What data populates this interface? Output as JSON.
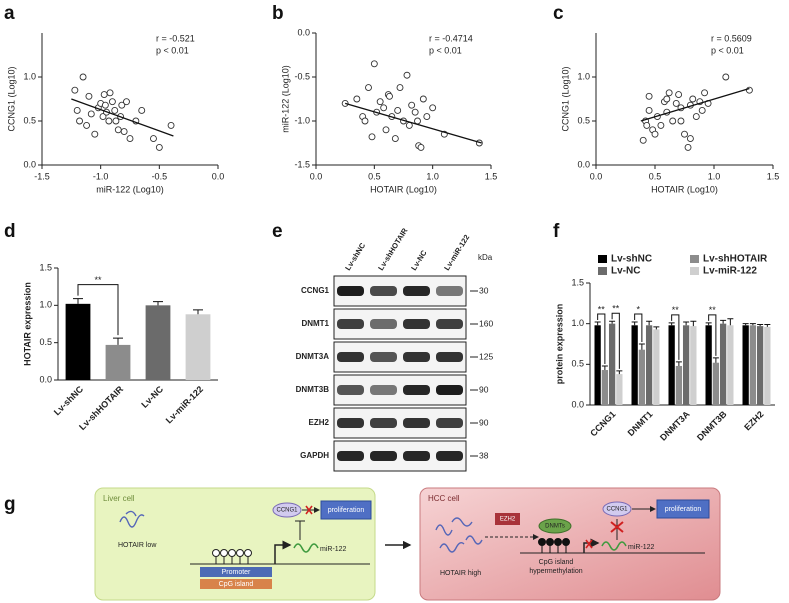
{
  "chart_data": [
    {
      "type": "scatter",
      "panel": "a",
      "x_label": "miR-122 (Log10)",
      "y_label": "CCNG1 (Log10)",
      "r_text": "r = -0.521",
      "p_text": "p < 0.01",
      "color": "#333333",
      "xlim": [
        -1.5,
        0
      ],
      "xticks": [
        -1.5,
        {
          "value": -1,
          "label": "-1.0"
        },
        -0.5,
        {
          "value": 0,
          "label": "0.0"
        }
      ],
      "ylim": [
        0,
        1.5
      ],
      "yticks": [
        {
          "value": 0,
          "label": "0.0"
        },
        0.5,
        {
          "value": 1,
          "label": "1.0"
        }
      ],
      "x": [
        -1.22,
        -1.2,
        -1.15,
        -1.12,
        -1.1,
        -1.05,
        -1.02,
        -1.0,
        -0.98,
        -0.97,
        -0.95,
        -0.93,
        -0.92,
        -0.9,
        -0.88,
        -0.87,
        -0.85,
        -0.83,
        -0.82,
        -0.8,
        -0.78,
        -0.75,
        -0.7,
        -0.65,
        -0.55,
        -0.5,
        -0.4,
        -1.18,
        -1.08,
        -0.96
      ],
      "y": [
        0.85,
        0.62,
        1.0,
        0.45,
        0.78,
        0.35,
        0.65,
        0.7,
        0.55,
        0.8,
        0.6,
        0.5,
        0.82,
        0.72,
        0.62,
        0.5,
        0.4,
        0.55,
        0.68,
        0.38,
        0.72,
        0.3,
        0.5,
        0.62,
        0.3,
        0.2,
        0.45,
        0.5,
        0.58,
        0.68
      ],
      "trendline": {
        "x": [
          -1.25,
          -0.38
        ],
        "y": [
          0.75,
          0.33
        ]
      }
    },
    {
      "type": "scatter",
      "panel": "b",
      "x_label": "HOTAIR (Log10)",
      "y_label": "miR-122 (Log10)",
      "r_text": "r = -0.4714",
      "p_text": "p < 0.01",
      "color": "#333333",
      "xlim": [
        0,
        1.5
      ],
      "xticks": [
        {
          "value": 0,
          "label": "0.0"
        },
        0.5,
        {
          "value": 1,
          "label": "1.0"
        },
        1.5
      ],
      "ylim": [
        -1.5,
        0
      ],
      "yticks": [
        -1.5,
        {
          "value": -1,
          "label": "-1.0"
        },
        -0.5,
        {
          "value": 0,
          "label": "0.0"
        }
      ],
      "x": [
        0.25,
        0.35,
        0.4,
        0.42,
        0.45,
        0.5,
        0.52,
        0.55,
        0.58,
        0.6,
        0.62,
        0.65,
        0.68,
        0.7,
        0.72,
        0.75,
        0.78,
        0.8,
        0.82,
        0.85,
        0.88,
        0.9,
        0.92,
        0.95,
        1.0,
        1.1,
        1.4,
        0.48,
        0.63,
        0.87
      ],
      "y": [
        -0.8,
        -0.75,
        -0.95,
        -1.0,
        -0.62,
        -0.35,
        -0.9,
        -0.78,
        -0.85,
        -1.1,
        -0.7,
        -0.95,
        -1.2,
        -0.88,
        -0.62,
        -1.0,
        -0.48,
        -1.05,
        -0.82,
        -0.9,
        -1.28,
        -1.3,
        -0.75,
        -0.95,
        -0.85,
        -1.15,
        -1.25,
        -1.18,
        -0.72,
        -1.0
      ],
      "trendline": {
        "x": [
          0.25,
          1.42
        ],
        "y": [
          -0.8,
          -1.25
        ]
      }
    },
    {
      "type": "scatter",
      "panel": "c",
      "x_label": "HOTAIR (Log10)",
      "y_label": "CCNG1 (Log10)",
      "r_text": "r = 0.5609",
      "p_text": "p < 0.01",
      "color": "#333333",
      "xlim": [
        0,
        1.5
      ],
      "xticks": [
        {
          "value": 0,
          "label": "0.0"
        },
        0.5,
        {
          "value": 1,
          "label": "1.0"
        },
        1.5
      ],
      "ylim": [
        0,
        1.5
      ],
      "yticks": [
        {
          "value": 0,
          "label": "0.0"
        },
        0.5,
        {
          "value": 1,
          "label": "1.0"
        }
      ],
      "x": [
        0.4,
        0.42,
        0.45,
        0.45,
        0.48,
        0.5,
        0.52,
        0.55,
        0.58,
        0.6,
        0.62,
        0.65,
        0.68,
        0.7,
        0.72,
        0.75,
        0.78,
        0.8,
        0.82,
        0.85,
        0.88,
        0.9,
        0.92,
        0.95,
        1.1,
        1.3,
        0.43,
        0.6,
        0.72,
        0.8
      ],
      "y": [
        0.28,
        0.5,
        0.62,
        0.78,
        0.4,
        0.35,
        0.55,
        0.45,
        0.72,
        0.6,
        0.82,
        0.5,
        0.7,
        0.8,
        0.65,
        0.35,
        0.2,
        0.68,
        0.75,
        0.55,
        0.72,
        0.62,
        0.82,
        0.7,
        1.0,
        0.85,
        0.45,
        0.75,
        0.5,
        0.3
      ],
      "trendline": {
        "x": [
          0.38,
          1.3
        ],
        "y": [
          0.5,
          0.87
        ]
      }
    },
    {
      "type": "bar",
      "panel": "d",
      "y_label": "HOTAIR expression",
      "categories": [
        "Lv-shNC",
        "Lv-shHOTAIR",
        "Lv-NC",
        "Lv-miR-122"
      ],
      "values": [
        1.02,
        0.47,
        1.0,
        0.88
      ],
      "errors": [
        0.07,
        0.09,
        0.05,
        0.06
      ],
      "colors": [
        "#000000",
        "#8c8c8c",
        "#6b6b6b",
        "#cfcfcf"
      ],
      "ylim": [
        0,
        1.5
      ],
      "yticks": [
        {
          "value": 0,
          "label": "0.0"
        },
        0.5,
        {
          "value": 1,
          "label": "1.0"
        },
        1.5
      ],
      "annotations": [
        {
          "text": "**",
          "between": [
            "Lv-shNC",
            "Lv-shHOTAIR"
          ]
        }
      ]
    },
    {
      "type": "grouped_bar",
      "panel": "f",
      "y_label": "protein expression",
      "legend": "top",
      "categories": [
        "CCNG1",
        "DNMT1",
        "DNMT3A",
        "DNMT3B",
        "EZH2"
      ],
      "series": [
        {
          "name": "Lv-shNC",
          "color": "#000000",
          "values": [
            0.98,
            0.98,
            0.98,
            0.98,
            0.98
          ],
          "errors": [
            0.04,
            0.04,
            0.03,
            0.03,
            0.02
          ]
        },
        {
          "name": "Lv-shHOTAIR",
          "color": "#8c8c8c",
          "values": [
            0.43,
            0.68,
            0.48,
            0.52,
            0.98
          ],
          "errors": [
            0.05,
            0.07,
            0.05,
            0.06,
            0.02
          ]
        },
        {
          "name": "Lv-NC",
          "color": "#6b6b6b",
          "values": [
            1.0,
            0.98,
            0.98,
            1.0,
            0.97
          ],
          "errors": [
            0.03,
            0.05,
            0.04,
            0.04,
            0.02
          ]
        },
        {
          "name": "Lv-miR-122",
          "color": "#cfcfcf",
          "values": [
            0.38,
            0.93,
            0.97,
            0.98,
            0.96
          ],
          "errors": [
            0.04,
            0.03,
            0.06,
            0.08,
            0.03
          ]
        }
      ],
      "ylim": [
        0,
        1.5
      ],
      "yticks": [
        {
          "value": 0,
          "label": "0.0"
        },
        0.5,
        {
          "value": 1,
          "label": "1.0"
        },
        1.5
      ],
      "annotations": [
        {
          "text": "**",
          "category": "CCNG1",
          "between": [
            "Lv-shNC",
            "Lv-shHOTAIR"
          ]
        },
        {
          "text": "**",
          "category": "CCNG1",
          "between": [
            "Lv-NC",
            "Lv-miR-122"
          ]
        },
        {
          "text": "*",
          "category": "DNMT1",
          "between": [
            "Lv-shNC",
            "Lv-shHOTAIR"
          ]
        },
        {
          "text": "**",
          "category": "DNMT3A",
          "between": [
            "Lv-shNC",
            "Lv-shHOTAIR"
          ]
        },
        {
          "text": "**",
          "category": "DNMT3B",
          "between": [
            "Lv-shNC",
            "Lv-shHOTAIR"
          ]
        }
      ]
    }
  ],
  "western_blot": {
    "panel": "e",
    "unit": "kDa",
    "lanes": [
      "Lv-shNC",
      "Lv-shHOTAIR",
      "Lv-NC",
      "Lv-miR-122"
    ],
    "rows": [
      {
        "label": "CCNG1",
        "kda": 30
      },
      {
        "label": "DNMT1",
        "kda": 160
      },
      {
        "label": "DNMT3A",
        "kda": 125
      },
      {
        "label": "DNMT3B",
        "kda": 90
      },
      {
        "label": "EZH2",
        "kda": 90
      },
      {
        "label": "GAPDH",
        "kda": 38
      }
    ]
  },
  "diagram": {
    "panel": "g",
    "liver": {
      "title": "Liver cell",
      "hotair": "HOTAIR low",
      "target": "CCNG1",
      "output": "proliferation",
      "mirna": "miR-122",
      "promoter": "Promoter",
      "cpg": "CpG island"
    },
    "hcc": {
      "title": "HCC cell",
      "enzyme": "EZH2",
      "dnmt": "DNMTs",
      "hotair": "HOTAIR high",
      "target": "CCNG1",
      "output": "proliferation",
      "mirna": "miR-122",
      "cpg": [
        "CpG island",
        "hypermethylation"
      ]
    }
  }
}
